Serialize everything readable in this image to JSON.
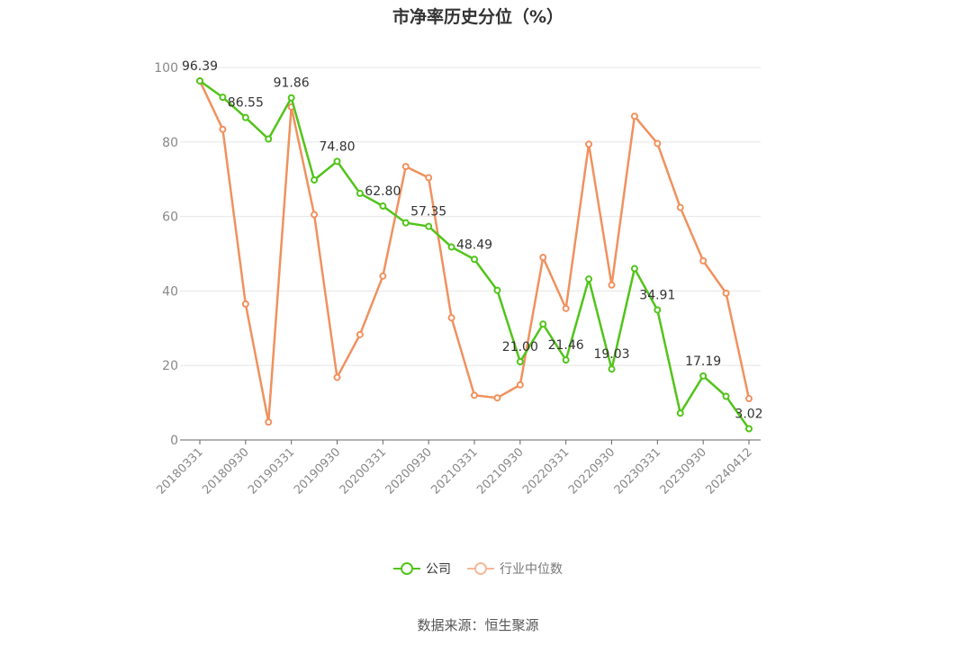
{
  "chart_data": {
    "type": "line",
    "title": "市净率历史分位（%）",
    "source": "数据来源：恒生聚源",
    "ylim": [
      0,
      100
    ],
    "yticks": [
      0,
      20,
      40,
      60,
      80,
      100
    ],
    "x_tick_labels": [
      "20180331",
      "20180930",
      "20190331",
      "20190930",
      "20200331",
      "20200930",
      "20210331",
      "20210930",
      "20220331",
      "20220930",
      "20230331",
      "20230930",
      "20240412"
    ],
    "x": [
      "20180331",
      "20180630",
      "20180930",
      "20181231",
      "20190331",
      "20190630",
      "20190930",
      "20191231",
      "20200331",
      "20200630",
      "20200930",
      "20201231",
      "20210331",
      "20210630",
      "20210930",
      "20211231",
      "20220331",
      "20220630",
      "20220930",
      "20221231",
      "20230331",
      "20230630",
      "20230930",
      "20231231",
      "20240412"
    ],
    "series": [
      {
        "name": "公司",
        "color": "#52c41a",
        "values": [
          96.39,
          92.0,
          86.55,
          80.8,
          91.86,
          69.8,
          74.8,
          66.2,
          62.8,
          58.3,
          57.35,
          51.8,
          48.49,
          40.2,
          21.0,
          31.1,
          21.46,
          43.2,
          19.03,
          46.0,
          34.91,
          7.2,
          17.19,
          11.7,
          3.02
        ],
        "labels": [
          "96.39",
          "",
          "86.55",
          "",
          "91.86",
          "",
          "74.80",
          "",
          "62.80",
          "",
          "57.35",
          "",
          "48.49",
          "",
          "21.00",
          "",
          "21.46",
          "",
          "19.03",
          "",
          "34.91",
          "",
          "17.19",
          "",
          "3.02"
        ]
      },
      {
        "name": "行业中位数",
        "color": "#f0915e",
        "values": [
          96.39,
          83.4,
          36.5,
          4.8,
          89.4,
          60.5,
          16.8,
          28.3,
          44.0,
          73.4,
          70.4,
          32.8,
          12.0,
          11.3,
          14.8,
          49.0,
          35.3,
          79.4,
          41.6,
          86.9,
          79.6,
          62.4,
          48.1,
          39.4,
          11.1
        ]
      }
    ],
    "legend_position": "bottom",
    "grid": true
  }
}
